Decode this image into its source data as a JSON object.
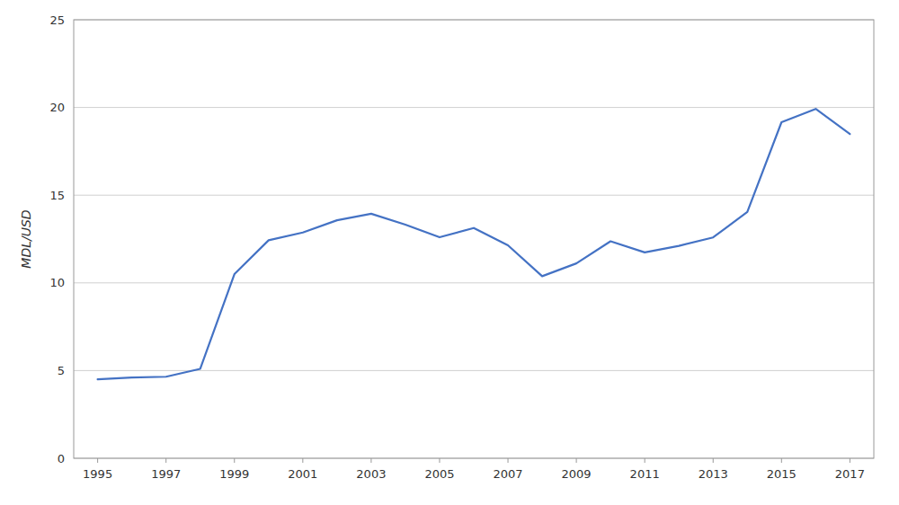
{
  "chart_data": {
    "type": "line",
    "x": [
      1995,
      1996,
      1997,
      1998,
      1999,
      2000,
      2001,
      2002,
      2003,
      2004,
      2005,
      2006,
      2007,
      2008,
      2009,
      2010,
      2011,
      2012,
      2013,
      2014,
      2015,
      2016,
      2017
    ],
    "values": [
      4.5,
      4.6,
      4.65,
      5.1,
      10.5,
      12.43,
      12.87,
      13.57,
      13.94,
      13.32,
      12.6,
      13.13,
      12.14,
      10.38,
      11.11,
      12.37,
      11.74,
      12.11,
      12.59,
      14.04,
      19.16,
      19.92,
      18.49
    ],
    "color": "#4472C4",
    "ylabel": "MDL/USD",
    "xlim": [
      1994.3,
      2017.7
    ],
    "xticks": [
      1995,
      1997,
      1999,
      2001,
      2003,
      2005,
      2007,
      2009,
      2011,
      2013,
      2015,
      2017
    ],
    "ylim": [
      0,
      25
    ],
    "yticks": [
      0,
      5,
      10,
      15,
      20,
      25
    ],
    "grid": true
  }
}
